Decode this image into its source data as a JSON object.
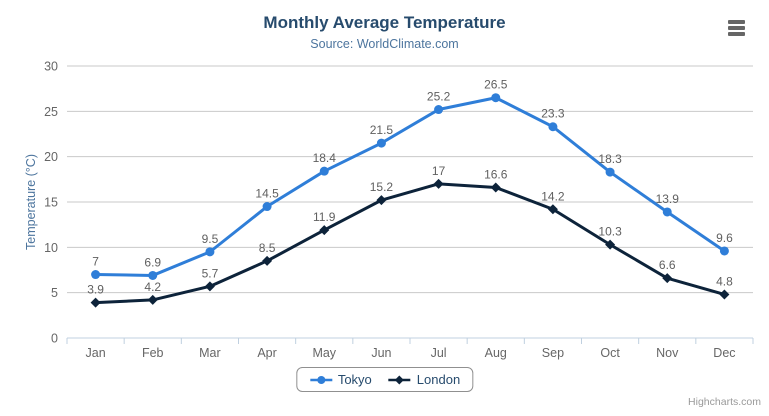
{
  "header": {
    "title": "Monthly Average Temperature",
    "subtitle": "Source: WorldClimate.com"
  },
  "icons": {
    "context_menu": "hamburger-icon"
  },
  "credits": "Highcharts.com",
  "chart_data": {
    "type": "line",
    "title": "Monthly Average Temperature",
    "subtitle": "Source: WorldClimate.com",
    "categories": [
      "Jan",
      "Feb",
      "Mar",
      "Apr",
      "May",
      "Jun",
      "Jul",
      "Aug",
      "Sep",
      "Oct",
      "Nov",
      "Dec"
    ],
    "series": [
      {
        "name": "Tokyo",
        "color": "#2f7ed8",
        "marker": "circle",
        "values": [
          7,
          6.9,
          9.5,
          14.5,
          18.4,
          21.5,
          25.2,
          26.5,
          23.3,
          18.3,
          13.9,
          9.6
        ]
      },
      {
        "name": "London",
        "color": "#0d233a",
        "marker": "diamond",
        "values": [
          3.9,
          4.2,
          5.7,
          8.5,
          11.9,
          15.2,
          17,
          16.6,
          14.2,
          10.3,
          6.6,
          4.8
        ]
      }
    ],
    "xlabel": "",
    "ylabel": "Temperature (°C)",
    "ylim": [
      0,
      30
    ],
    "ytick_interval": 5,
    "yticks": [
      0,
      5,
      10,
      15,
      20,
      25,
      30
    ],
    "grid": true,
    "data_labels": true,
    "legend_position": "bottom"
  },
  "theme": {
    "title_color": "#274b6d",
    "subtitle_color": "#4d759e",
    "axis_title_color": "#4d759e",
    "axis_label_color": "#666666",
    "data_label_color": "#606060",
    "grid_color": "#c9c9c9",
    "axis_line_color": "#c0d0e0",
    "legend_border_color": "#909090",
    "legend_text_color": "#274b6d",
    "credits_color": "#999999",
    "menu_icon_color": "#666666"
  }
}
